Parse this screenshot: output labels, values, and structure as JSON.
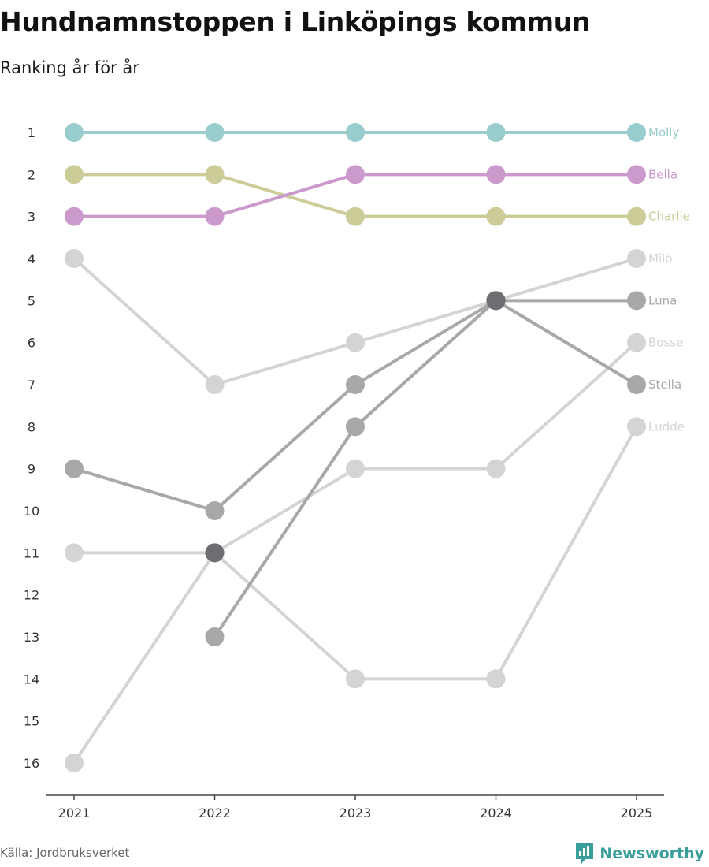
{
  "chart_data": {
    "type": "line",
    "title": "Hundnamnstoppen i Linköpings kommun",
    "subtitle": "Ranking år för år",
    "xlabel": "",
    "ylabel": "",
    "x": [
      2021,
      2022,
      2023,
      2024,
      2025
    ],
    "ylim": [
      1,
      16
    ],
    "y_inverted": true,
    "yticks": [
      1,
      2,
      3,
      4,
      5,
      6,
      7,
      8,
      9,
      10,
      11,
      12,
      13,
      14,
      15,
      16
    ],
    "series": [
      {
        "name": "Ludde",
        "values": [
          11,
          11,
          14,
          14,
          8
        ],
        "color": "#d4d4d4"
      },
      {
        "name": "Bosse",
        "values": [
          16,
          11,
          9,
          9,
          6
        ],
        "color": "#d4d4d4"
      },
      {
        "name": "Milo",
        "values": [
          4,
          7,
          6,
          5,
          4
        ],
        "color": "#d4d4d4"
      },
      {
        "name": "Stella",
        "values": [
          9,
          10,
          7,
          5,
          7
        ],
        "color": "#a8a8a8"
      },
      {
        "name": "Luna",
        "values": [
          null,
          13,
          8,
          5,
          5
        ],
        "color": "#a8a8a8"
      },
      {
        "name": "Charlie",
        "values": [
          2,
          2,
          3,
          3,
          3
        ],
        "color": "#cccc99"
      },
      {
        "name": "Bella",
        "values": [
          3,
          3,
          2,
          2,
          2
        ],
        "color": "#cc99cc"
      },
      {
        "name": "Molly",
        "values": [
          1,
          1,
          1,
          1,
          1
        ],
        "color": "#99cccc"
      }
    ]
  },
  "footer": {
    "source": "Källa: Jordbruksverket",
    "brand": "Newsworthy"
  },
  "colors": {
    "brand": "#3b9e9a",
    "overlap_point": "#6e6e72"
  }
}
